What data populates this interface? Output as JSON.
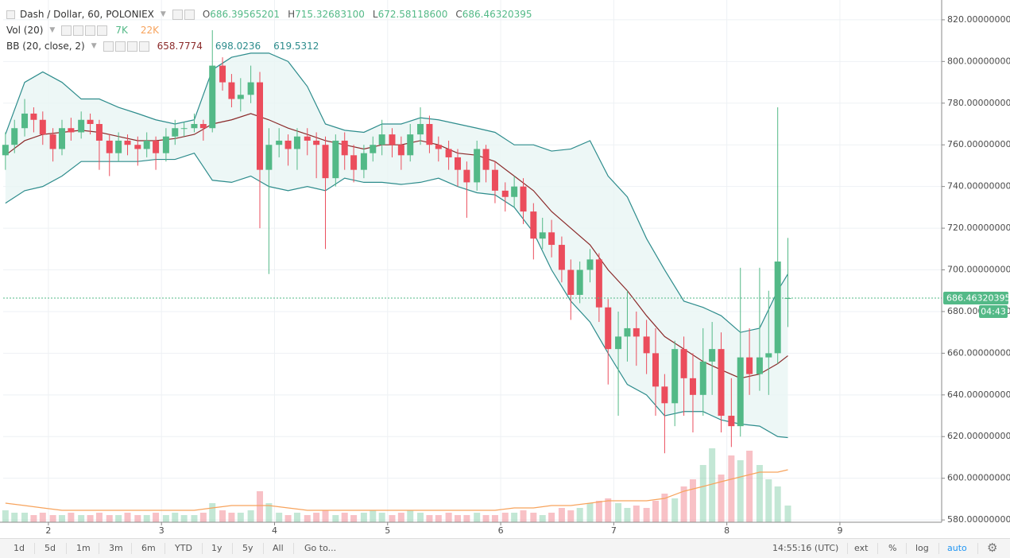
{
  "chart_data": {
    "type": "candlestick",
    "title": "Dash / Dollar, 60, POLONIEX",
    "x": [
      1.62,
      1.7,
      1.79,
      1.87,
      1.95,
      2.04,
      2.12,
      2.2,
      2.29,
      2.37,
      2.45,
      2.54,
      2.62,
      2.7,
      2.79,
      2.87,
      2.95,
      3.04,
      3.12,
      3.2,
      3.29,
      3.37,
      3.45,
      3.54,
      3.62,
      3.7,
      3.79,
      3.87,
      3.95,
      4.04,
      4.12,
      4.2,
      4.29,
      4.37,
      4.45,
      4.54,
      4.62,
      4.7,
      4.79,
      4.87,
      4.95,
      5.04,
      5.12,
      5.2,
      5.29,
      5.37,
      5.45,
      5.54,
      5.62,
      5.7,
      5.79,
      5.87,
      5.95,
      6.04,
      6.12,
      6.2,
      6.29,
      6.37,
      6.45,
      6.54,
      6.62,
      6.7,
      6.79,
      6.87,
      6.95,
      7.04,
      7.12,
      7.2,
      7.29,
      7.37,
      7.45,
      7.54,
      7.62,
      7.7,
      7.79,
      7.87,
      7.95,
      8.04,
      8.12,
      8.2,
      8.29,
      8.37,
      8.45,
      8.54
    ],
    "open": [
      755,
      760,
      768,
      775,
      772,
      765,
      758,
      768,
      766,
      772,
      770,
      762,
      756,
      762,
      760,
      758,
      762,
      756,
      764,
      768,
      768,
      770,
      768,
      798,
      790,
      782,
      784,
      790,
      748,
      760,
      762,
      758,
      764,
      762,
      760,
      744,
      762,
      755,
      748,
      756,
      760,
      765,
      760,
      755,
      765,
      770,
      760,
      758,
      754,
      748,
      742,
      758,
      748,
      738,
      735,
      740,
      728,
      715,
      718,
      712,
      700,
      688,
      700,
      705,
      682,
      662,
      668,
      672,
      668,
      660,
      644,
      636,
      662,
      648,
      640,
      656,
      662,
      630,
      625,
      658,
      650,
      658,
      660,
      686.39565201
    ],
    "high": [
      766,
      772,
      782,
      778,
      776,
      768,
      772,
      773,
      776,
      775,
      772,
      765,
      766,
      765,
      764,
      766,
      764,
      768,
      772,
      771,
      775,
      772,
      815,
      802,
      794,
      792,
      798,
      795,
      768,
      768,
      765,
      768,
      768,
      766,
      764,
      765,
      766,
      760,
      760,
      764,
      772,
      768,
      764,
      770,
      778,
      774,
      764,
      762,
      758,
      752,
      762,
      760,
      752,
      742,
      745,
      744,
      732,
      725,
      724,
      716,
      705,
      704,
      710,
      708,
      686,
      680,
      690,
      680,
      676,
      672,
      650,
      666,
      668,
      660,
      672,
      675,
      670,
      648,
      701,
      672,
      701,
      690,
      778,
      715.326831
    ],
    "low": [
      748,
      756,
      764,
      766,
      760,
      752,
      755,
      762,
      763,
      765,
      748,
      745,
      752,
      755,
      750,
      754,
      748,
      752,
      760,
      764,
      766,
      762,
      766,
      786,
      778,
      776,
      780,
      720,
      698,
      754,
      750,
      748,
      755,
      744,
      710,
      740,
      748,
      742,
      744,
      752,
      755,
      754,
      748,
      752,
      760,
      756,
      752,
      748,
      740,
      725,
      738,
      742,
      732,
      728,
      730,
      722,
      705,
      710,
      706,
      694,
      676,
      684,
      694,
      675,
      645,
      630,
      656,
      654,
      650,
      630,
      612,
      625,
      630,
      622,
      630,
      640,
      622,
      615,
      620,
      640,
      642,
      640,
      655,
      672.581186
    ],
    "close": [
      760,
      768,
      775,
      772,
      765,
      758,
      768,
      766,
      772,
      770,
      762,
      756,
      762,
      760,
      758,
      762,
      756,
      764,
      768,
      768,
      770,
      768,
      798,
      790,
      782,
      784,
      790,
      748,
      760,
      762,
      758,
      764,
      762,
      760,
      744,
      762,
      755,
      748,
      756,
      760,
      765,
      760,
      755,
      765,
      770,
      760,
      758,
      754,
      748,
      742,
      758,
      748,
      738,
      735,
      740,
      728,
      715,
      718,
      712,
      700,
      688,
      700,
      705,
      682,
      662,
      668,
      672,
      668,
      660,
      644,
      636,
      662,
      648,
      640,
      656,
      662,
      630,
      625,
      658,
      650,
      658,
      660,
      704,
      686.46320395
    ],
    "ohlc_legend": {
      "names": [
        "O",
        "H",
        "L",
        "C"
      ],
      "value_labels": [
        "686.39565201",
        "715.32683100",
        "672.58118600",
        "686.46320395"
      ]
    },
    "up_color": "#53b987",
    "down_color": "#eb4d5c",
    "volume": {
      "name": "Vol (20)",
      "values": [
        5,
        4,
        4,
        3,
        4,
        3,
        3,
        4,
        3,
        3,
        4,
        3,
        3,
        4,
        3,
        3,
        4,
        3,
        4,
        3,
        3,
        4,
        8,
        5,
        4,
        4,
        5,
        13,
        8,
        4,
        3,
        4,
        3,
        4,
        5,
        3,
        4,
        3,
        4,
        5,
        4,
        3,
        4,
        5,
        4,
        3,
        3,
        4,
        3,
        3,
        4,
        3,
        3,
        4,
        4,
        5,
        4,
        3,
        4,
        6,
        5,
        6,
        8,
        9,
        10,
        8,
        6,
        7,
        6,
        9,
        12,
        10,
        15,
        18,
        24,
        31,
        20,
        28,
        26,
        30,
        24,
        18,
        15,
        7
      ],
      "legend_labels": [
        "7K",
        "22K"
      ]
    },
    "volume_ma": {
      "color": "#f7a35c",
      "x": [
        1.62,
        1.79,
        1.95,
        2.12,
        2.29,
        2.45,
        2.62,
        2.79,
        2.95,
        3.12,
        3.29,
        3.45,
        3.62,
        3.79,
        3.95,
        4.12,
        4.29,
        4.45,
        4.62,
        4.79,
        4.95,
        5.12,
        5.29,
        5.45,
        5.62,
        5.79,
        5.95,
        6.12,
        6.29,
        6.45,
        6.62,
        6.79,
        6.95,
        7.12,
        7.29,
        7.45,
        7.62,
        7.79,
        7.95,
        8.12,
        8.29,
        8.45,
        8.54
      ],
      "values": [
        8,
        7,
        6,
        5,
        5,
        5,
        5,
        5,
        5,
        5,
        5,
        6,
        7,
        7,
        7,
        6,
        5,
        5,
        5,
        5,
        5,
        5,
        5,
        5,
        5,
        5,
        5,
        6,
        6,
        7,
        7,
        8,
        9,
        9,
        9,
        10,
        13,
        15,
        17,
        19,
        21,
        21,
        22
      ]
    },
    "bollinger": {
      "name": "BB (20, close, 2)",
      "middle_color": "#8b2a2a",
      "band_color": "#2d8c8c",
      "fill_color": "#e8f5f4",
      "x": [
        1.62,
        1.79,
        1.95,
        2.12,
        2.29,
        2.45,
        2.62,
        2.79,
        2.95,
        3.12,
        3.29,
        3.45,
        3.62,
        3.79,
        3.95,
        4.12,
        4.29,
        4.45,
        4.62,
        4.79,
        4.95,
        5.12,
        5.29,
        5.45,
        5.62,
        5.79,
        5.95,
        6.12,
        6.29,
        6.45,
        6.62,
        6.79,
        6.95,
        7.12,
        7.29,
        7.45,
        7.62,
        7.79,
        7.95,
        8.12,
        8.29,
        8.45,
        8.54
      ],
      "middle": [
        755,
        762,
        765,
        766,
        767,
        766,
        764,
        762,
        762,
        763,
        765,
        770,
        772,
        775,
        772,
        768,
        765,
        762,
        760,
        758,
        760,
        760,
        762,
        760,
        756,
        755,
        752,
        745,
        738,
        728,
        720,
        712,
        700,
        690,
        678,
        668,
        662,
        656,
        652,
        648,
        650,
        655,
        658.7774
      ],
      "upper": [
        765,
        790,
        795,
        790,
        782,
        782,
        778,
        775,
        772,
        770,
        772,
        796,
        802,
        804,
        804,
        800,
        788,
        770,
        767,
        766,
        770,
        770,
        773,
        772,
        770,
        768,
        766,
        760,
        760,
        757,
        758,
        762,
        745,
        735,
        715,
        700,
        685,
        682,
        678,
        670,
        672,
        690,
        698.0236
      ],
      "lower": [
        732,
        738,
        740,
        745,
        752,
        752,
        752,
        752,
        753,
        753,
        756,
        743,
        742,
        745,
        740,
        738,
        740,
        738,
        744,
        742,
        742,
        741,
        742,
        744,
        740,
        737,
        736,
        730,
        718,
        700,
        685,
        675,
        660,
        645,
        640,
        630,
        632,
        632,
        628,
        626,
        625,
        620,
        619.5312
      ]
    },
    "countdown": "04:43",
    "ylim": [
      578.9,
      829.5
    ],
    "yticks": [
      {
        "value": 580,
        "label": "580.00000000"
      },
      {
        "value": 600,
        "label": "600.00000000"
      },
      {
        "value": 620,
        "label": "620.00000000"
      },
      {
        "value": 640,
        "label": "640.00000000"
      },
      {
        "value": 660,
        "label": "660.00000000"
      },
      {
        "value": 680,
        "label": "680.00000000"
      },
      {
        "value": 700,
        "label": "700.00000000"
      },
      {
        "value": 720,
        "label": "720.00000000"
      },
      {
        "value": 740,
        "label": "740.00000000"
      },
      {
        "value": 760,
        "label": "760.00000000"
      },
      {
        "value": 780,
        "label": "780.00000000"
      },
      {
        "value": 800,
        "label": "800.00000000"
      },
      {
        "value": 820,
        "label": "820.00000000"
      }
    ],
    "xlim": [
      1.6,
      9.9
    ],
    "xticks": [
      2,
      3,
      4,
      5,
      6,
      7,
      8,
      9
    ],
    "grid": true
  },
  "toolbar": {
    "ranges": [
      "1d",
      "5d",
      "1m",
      "3m",
      "6m",
      "YTD",
      "1y",
      "5y",
      "All"
    ],
    "goto": "Go to...",
    "time": "14:55:16 (UTC)",
    "options": [
      "ext",
      "%",
      "log",
      "auto"
    ]
  }
}
